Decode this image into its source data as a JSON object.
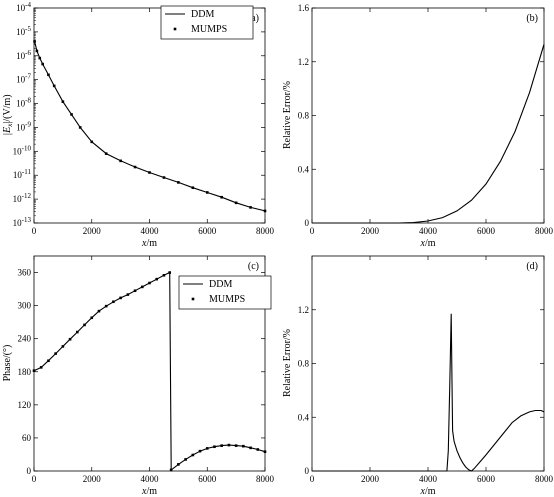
{
  "chart_data": [
    {
      "panel_label": "(a)",
      "type": "line",
      "xlabel": "x/m",
      "ylabel": "|Ex|/(V/m)",
      "ylabel_main": "|E",
      "ylabel_sub": "x",
      "ylabel_tail": "|/(V/m)",
      "xlim": [
        0,
        8000
      ],
      "ylim": [
        1e-13,
        0.0001
      ],
      "yscale": "log",
      "xticks": [
        0,
        2000,
        4000,
        6000,
        8000
      ],
      "xtick_labels": [
        "0",
        "2000",
        "4000",
        "6000",
        "8000"
      ],
      "yticks": [
        1e-13,
        1e-12,
        1e-11,
        1e-10,
        1e-09,
        1e-08,
        1e-07,
        1e-06,
        1e-05,
        0.0001
      ],
      "ytick_labels": [
        {
          "base": "10",
          "exp": "-13"
        },
        {
          "base": "10",
          "exp": "-12"
        },
        {
          "base": "10",
          "exp": "-11"
        },
        {
          "base": "10",
          "exp": "-10"
        },
        {
          "base": "10",
          "exp": "-9"
        },
        {
          "base": "10",
          "exp": "-8"
        },
        {
          "base": "10",
          "exp": "-7"
        },
        {
          "base": "10",
          "exp": "-6"
        },
        {
          "base": "10",
          "exp": "-5"
        },
        {
          "base": "10",
          "exp": "-4"
        }
      ],
      "legend": {
        "placement": "top-center",
        "entries": [
          "DDM",
          "MUMPS"
        ]
      },
      "x": [
        20,
        100,
        200,
        300,
        500,
        700,
        1000,
        1300,
        1600,
        2000,
        2500,
        3000,
        3500,
        4000,
        4500,
        5000,
        5500,
        6000,
        6500,
        7000,
        7500,
        8000
      ],
      "series": [
        {
          "name": "DDM",
          "style": "line",
          "values": [
            4e-06,
            1.6e-06,
            8e-07,
            4.5e-07,
            1.6e-07,
            5.5e-08,
            1.2e-08,
            3.5e-09,
            1e-09,
            2.5e-10,
            8e-11,
            4e-11,
            2.2e-11,
            1.3e-11,
            8e-12,
            5e-12,
            3e-12,
            1.9e-12,
            1.2e-12,
            7e-13,
            4.5e-13,
            3.2e-13
          ]
        },
        {
          "name": "MUMPS",
          "style": "markers",
          "values": [
            4e-06,
            1.6e-06,
            8e-07,
            4.5e-07,
            1.6e-07,
            5.5e-08,
            1.2e-08,
            3.5e-09,
            1e-09,
            2.5e-10,
            8e-11,
            4e-11,
            2.2e-11,
            1.3e-11,
            8e-12,
            5e-12,
            3e-12,
            1.9e-12,
            1.2e-12,
            7e-13,
            4.5e-13,
            3.2e-13
          ]
        }
      ]
    },
    {
      "panel_label": "(b)",
      "type": "line",
      "xlabel": "x/m",
      "ylabel": "Relative Error/%",
      "xlim": [
        0,
        8000
      ],
      "ylim": [
        0,
        1.6
      ],
      "xticks": [
        0,
        2000,
        4000,
        6000,
        8000
      ],
      "xtick_labels": [
        "0",
        "2000",
        "4000",
        "6000",
        "8000"
      ],
      "yticks": [
        0,
        0.4,
        0.8,
        1.2,
        1.6
      ],
      "ytick_labels": [
        "0",
        "0.4",
        "0.8",
        "1.2",
        "1.6"
      ],
      "x": [
        0,
        1000,
        2000,
        3000,
        3500,
        4000,
        4500,
        5000,
        5500,
        6000,
        6500,
        7000,
        7500,
        8000
      ],
      "series": [
        {
          "name": "",
          "style": "line",
          "values": [
            0,
            0,
            0,
            0,
            0.003,
            0.015,
            0.04,
            0.09,
            0.17,
            0.29,
            0.46,
            0.68,
            0.97,
            1.33
          ]
        }
      ]
    },
    {
      "panel_label": "(c)",
      "type": "line",
      "xlabel": "x/m",
      "ylabel": "Phase/(°)",
      "xlim": [
        0,
        8000
      ],
      "ylim": [
        0,
        390
      ],
      "xticks": [
        0,
        2000,
        4000,
        6000,
        8000
      ],
      "xtick_labels": [
        "0",
        "2000",
        "4000",
        "6000",
        "8000"
      ],
      "yticks": [
        0,
        60,
        120,
        180,
        240,
        300,
        360
      ],
      "ytick_labels": [
        "0",
        "60",
        "120",
        "180",
        "240",
        "300",
        "360"
      ],
      "legend": {
        "placement": "top-right",
        "entries": [
          "DDM",
          "MUMPS"
        ]
      },
      "x": [
        0,
        250,
        500,
        750,
        1000,
        1250,
        1500,
        1750,
        2000,
        2250,
        2500,
        2750,
        3000,
        3250,
        3500,
        3750,
        4000,
        4250,
        4500,
        4700,
        4750,
        5000,
        5250,
        5500,
        5750,
        6000,
        6250,
        6500,
        6750,
        7000,
        7250,
        7500,
        7750,
        8000
      ],
      "series": [
        {
          "name": "DDM",
          "style": "line",
          "values": [
            182,
            188,
            200,
            213,
            226,
            239,
            252,
            265,
            278,
            290,
            299,
            307,
            314,
            320,
            327,
            334,
            341,
            348,
            355,
            360,
            2,
            12,
            21,
            29,
            36,
            41,
            44,
            46,
            47,
            46,
            45,
            42,
            39,
            35
          ]
        },
        {
          "name": "MUMPS",
          "style": "markers",
          "values": [
            182,
            188,
            200,
            213,
            226,
            239,
            252,
            265,
            278,
            290,
            299,
            307,
            314,
            320,
            327,
            334,
            341,
            348,
            355,
            360,
            2,
            12,
            21,
            29,
            36,
            41,
            44,
            46,
            47,
            46,
            45,
            42,
            39,
            35
          ]
        }
      ]
    },
    {
      "panel_label": "(d)",
      "type": "line",
      "xlabel": "x/m",
      "ylabel": "Relative Error/%",
      "xlim": [
        0,
        8000
      ],
      "ylim": [
        0,
        1.6
      ],
      "xticks": [
        0,
        2000,
        4000,
        6000,
        8000
      ],
      "xtick_labels": [
        "0",
        "2000",
        "4000",
        "6000",
        "8000"
      ],
      "yticks": [
        0,
        0.4,
        0.8,
        1.2
      ],
      "ytick_labels": [
        "0",
        "0.4",
        "0.8",
        "1.2"
      ],
      "x": [
        0,
        4000,
        4650,
        4700,
        4750,
        4800,
        4830,
        4850,
        4900,
        5000,
        5100,
        5200,
        5300,
        5400,
        5500,
        5600,
        5800,
        6000,
        6300,
        6600,
        6900,
        7200,
        7500,
        7700,
        7800,
        7900,
        8000
      ],
      "series": [
        {
          "name": "",
          "style": "line",
          "values": [
            0,
            0,
            0,
            0.15,
            0.65,
            1.17,
            0.6,
            0.3,
            0.22,
            0.15,
            0.1,
            0.06,
            0.03,
            0.01,
            0.0,
            0.02,
            0.07,
            0.12,
            0.2,
            0.28,
            0.36,
            0.41,
            0.44,
            0.45,
            0.45,
            0.45,
            0.44
          ]
        }
      ]
    }
  ]
}
